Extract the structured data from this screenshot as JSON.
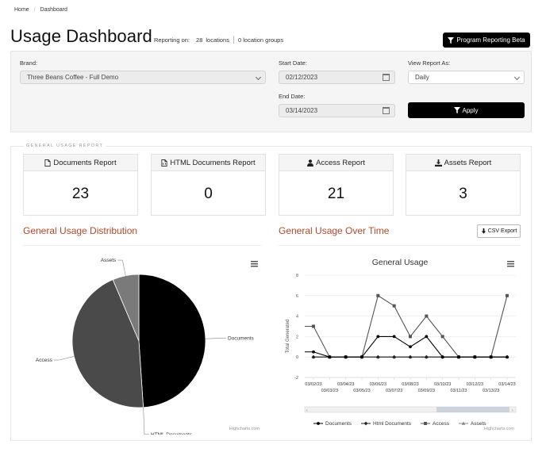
{
  "breadcrumb": {
    "home": "Home",
    "current": "Dashboard"
  },
  "header": {
    "title": "Usage Dashboard",
    "reporting_on": "Reporting on:",
    "location_count": "28",
    "locations_label": "locations",
    "location_groups": "0 location groups",
    "beta_button": "Program Reporting Beta"
  },
  "filters": {
    "brand_label": "Brand:",
    "brand_value": "Three Beans Coffee - Full Demo",
    "start_label": "Start Date:",
    "start_value": "02/12/2023",
    "end_label": "End Date:",
    "end_value": "03/14/2023",
    "view_label": "View Report As:",
    "view_value": "Daily",
    "apply_button": "Apply"
  },
  "general": {
    "legend": "GENERAL USAGE REPORT",
    "cards": [
      {
        "label": "Documents Report",
        "icon": "file-icon",
        "value": "23"
      },
      {
        "label": "HTML Documents Report",
        "icon": "file-code-icon",
        "value": "0"
      },
      {
        "label": "Access Report",
        "icon": "user-icon",
        "value": "21"
      },
      {
        "label": "Assets Report",
        "icon": "download-icon",
        "value": "3"
      }
    ],
    "distribution_title": "General Usage Distribution",
    "over_time_title": "General Usage Over Time",
    "csv_button": "CSV Export",
    "credits": "Highcharts.com"
  },
  "chart_data": [
    {
      "type": "pie",
      "labels": [
        "Documents",
        "HTML Documents",
        "Access",
        "Assets"
      ],
      "values": [
        23,
        0,
        21,
        3
      ],
      "colors": [
        "#000000",
        "#222222",
        "#4a4a4a",
        "#7a7a7a"
      ]
    },
    {
      "type": "line",
      "title": "General Usage",
      "ylabel": "Total Generated",
      "ylim": [
        -2,
        8
      ],
      "yticks": [
        -2,
        0,
        2,
        4,
        6,
        8
      ],
      "x": [
        "03/02/23",
        "03/03/23",
        "03/04/23",
        "03/05/23",
        "03/06/23",
        "03/07/23",
        "03/08/23",
        "03/09/23",
        "03/10/23",
        "03/11/23",
        "03/12/23",
        "03/13/23",
        "03/14/23"
      ],
      "series": [
        {
          "name": "Documents",
          "color": "#000000",
          "marker": "circle",
          "values": [
            0.5,
            0,
            0,
            0,
            2,
            2,
            1,
            2,
            0,
            0,
            0,
            0,
            0
          ]
        },
        {
          "name": "Html Documents",
          "color": "#222222",
          "marker": "diamond",
          "values": [
            0,
            0,
            0,
            0,
            0,
            0,
            0,
            0,
            0,
            0,
            0,
            0,
            0
          ]
        },
        {
          "name": "Access",
          "color": "#555555",
          "marker": "square",
          "values": [
            3,
            0,
            0,
            0,
            6,
            5,
            2,
            4,
            2,
            0,
            0,
            0,
            6
          ]
        },
        {
          "name": "Assets",
          "color": "#888888",
          "marker": "triangle",
          "values": [
            0,
            0,
            0,
            0,
            0,
            0,
            0,
            0,
            0,
            0,
            0,
            0,
            0
          ]
        }
      ],
      "legend_position": "bottom"
    }
  ]
}
